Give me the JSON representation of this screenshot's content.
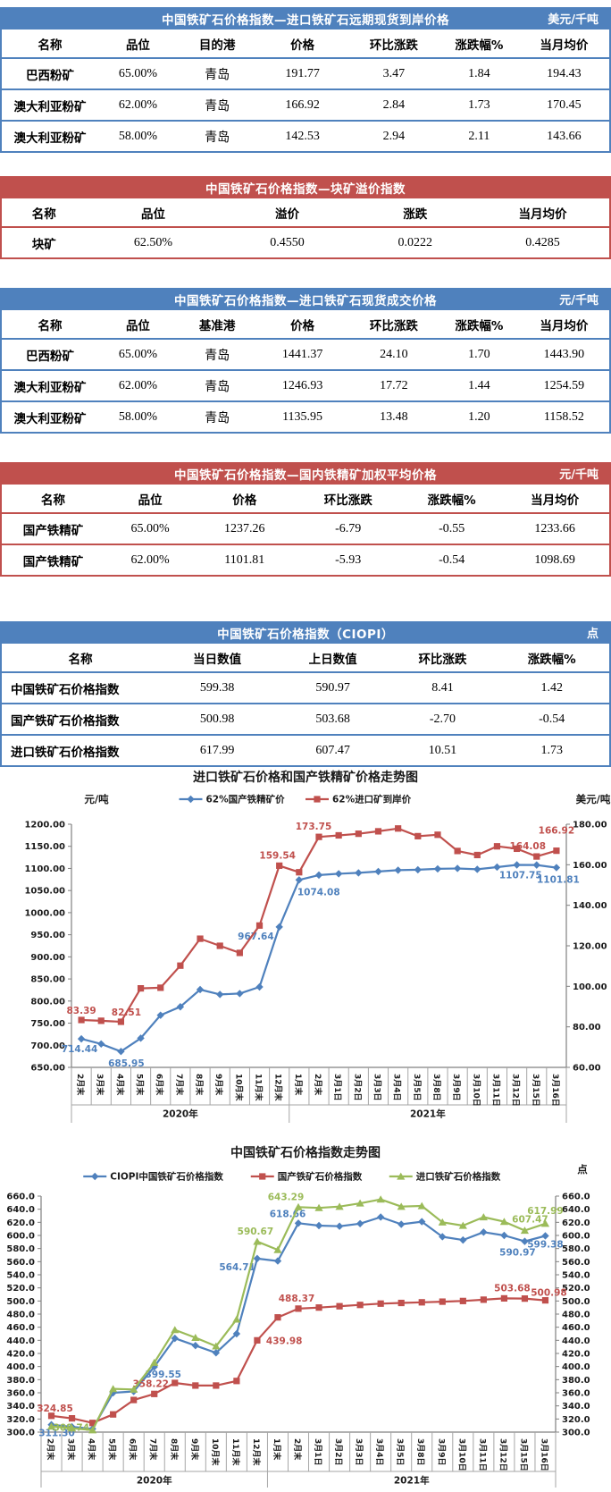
{
  "report": {
    "language": "zh-CN"
  },
  "tables": [
    {
      "title": "中国铁矿石价格指数—进口铁矿石远期现货到岸价格",
      "unit": "美元/千吨",
      "theme": "blue",
      "headers": [
        "名称",
        "品位",
        "目的港",
        "价格",
        "环比涨跌",
        "涨跌幅%",
        "当月均价"
      ],
      "rows": [
        [
          "巴西粉矿",
          "65.00%",
          "青岛",
          "191.77",
          "3.47",
          "1.84",
          "194.43"
        ],
        [
          "澳大利亚粉矿",
          "62.00%",
          "青岛",
          "166.92",
          "2.84",
          "1.73",
          "170.45"
        ],
        [
          "澳大利亚粉矿",
          "58.00%",
          "青岛",
          "142.53",
          "2.94",
          "2.11",
          "143.66"
        ]
      ]
    },
    {
      "title": "中国铁矿石价格指数—块矿溢价指数",
      "unit": "",
      "theme": "red",
      "headers": [
        "名称",
        "品位",
        "溢价",
        "涨跌",
        "当月均价"
      ],
      "rows": [
        [
          "块矿",
          "62.50%",
          "0.4550",
          "0.0222",
          "0.4285"
        ]
      ]
    },
    {
      "title": "中国铁矿石价格指数—进口铁矿石现货成交价格",
      "unit": "元/千吨",
      "theme": "blue",
      "headers": [
        "名称",
        "品位",
        "基准港",
        "价格",
        "环比涨跌",
        "涨跌幅%",
        "当月均价"
      ],
      "rows": [
        [
          "巴西粉矿",
          "65.00%",
          "青岛",
          "1441.37",
          "24.10",
          "1.70",
          "1443.90"
        ],
        [
          "澳大利亚粉矿",
          "62.00%",
          "青岛",
          "1246.93",
          "17.72",
          "1.44",
          "1254.59"
        ],
        [
          "澳大利亚粉矿",
          "58.00%",
          "青岛",
          "1135.95",
          "13.48",
          "1.20",
          "1158.52"
        ]
      ]
    },
    {
      "title": "中国铁矿石价格指数—国内铁精矿加权平均价格",
      "unit": "元/千吨",
      "theme": "red",
      "headers": [
        "名称",
        "品位",
        "价格",
        "环比涨跌",
        "涨跌幅%",
        "当月均价"
      ],
      "rows": [
        [
          "国产铁精矿",
          "65.00%",
          "1237.26",
          "-6.79",
          "-0.55",
          "1233.66"
        ],
        [
          "国产铁精矿",
          "62.00%",
          "1101.81",
          "-5.93",
          "-0.54",
          "1098.69"
        ]
      ]
    },
    {
      "title": "中国铁矿石价格指数（CIOPI）",
      "unit": "点",
      "theme": "blue",
      "headers": [
        "名称",
        "当日数值",
        "上日数值",
        "环比涨跌",
        "涨跌幅%"
      ],
      "rows": [
        [
          "中国铁矿石价格指数",
          "599.38",
          "590.97",
          "8.41",
          "1.42"
        ],
        [
          "国产铁矿石价格指数",
          "500.98",
          "503.68",
          "-2.70",
          "-0.54"
        ],
        [
          "进口铁矿石价格指数",
          "617.99",
          "607.47",
          "10.51",
          "1.73"
        ]
      ]
    }
  ],
  "chart_data": [
    {
      "type": "line",
      "name": "chart-import-vs-domestic-price-trend",
      "title": "进口铁矿石价格和国产铁精矿价格走势图",
      "left_axis": {
        "label": "元/吨",
        "min": 650,
        "max": 1200,
        "step": 50,
        "decimals": 2
      },
      "right_axis": {
        "label": "美元/吨",
        "min": 60,
        "max": 180,
        "step": 20,
        "decimals": 2
      },
      "grid": false,
      "legend_position": "top",
      "categories": [
        "2月末",
        "3月末",
        "4月末",
        "5月末",
        "6月末",
        "7月末",
        "8月末",
        "9月末",
        "10月末",
        "11月末",
        "12月末",
        "1月末",
        "2月末",
        "3月1日",
        "3月2日",
        "3月3日",
        "3月4日",
        "3月5日",
        "3月8日",
        "3月9日",
        "3月10日",
        "3月11日",
        "3月12日",
        "3月15日",
        "3月16日"
      ],
      "year_groups": [
        {
          "label": "2020年",
          "span": 11
        },
        {
          "label": "2021年",
          "span": 14
        }
      ],
      "series": [
        {
          "name": "62%国产铁精矿价",
          "color": "#4F81BD",
          "marker": "diamond",
          "axis": "left",
          "values": [
            714.44,
            703,
            685.95,
            716,
            768,
            787,
            826,
            815,
            817,
            832,
            967.64,
            1074.08,
            1085,
            1088,
            1090,
            1093,
            1096,
            1097,
            1099,
            1100,
            1098,
            1103,
            1108,
            1107.75,
            1101.81
          ],
          "labels": [
            {
              "i": 0,
              "t": "714.44",
              "dx": -2,
              "dy": 15,
              "a": "middle"
            },
            {
              "i": 2,
              "t": "685.95",
              "dx": 6,
              "dy": 17,
              "a": "middle"
            },
            {
              "i": 10,
              "t": "967.64",
              "dx": -6,
              "dy": 14,
              "a": "end"
            },
            {
              "i": 11,
              "t": "1074.08",
              "dx": -2,
              "dy": 17,
              "a": "start"
            },
            {
              "i": 23,
              "t": "1107.75",
              "dx": -18,
              "dy": 15,
              "a": "middle"
            },
            {
              "i": 24,
              "t": "1101.81",
              "dx": 2,
              "dy": 17,
              "a": "middle"
            }
          ]
        },
        {
          "name": "62%进口矿到岸价",
          "color": "#C0504D",
          "marker": "square",
          "axis": "right",
          "values": [
            83.39,
            83.0,
            82.51,
            99.0,
            99.3,
            110.2,
            123.5,
            120.0,
            116.5,
            130.0,
            159.54,
            156.3,
            173.75,
            174.5,
            175.3,
            176.5,
            177.9,
            174.1,
            174.8,
            166.8,
            164.8,
            169.1,
            167.9,
            164.08,
            166.92
          ],
          "labels": [
            {
              "i": 0,
              "t": "83.39",
              "dx": 0,
              "dy": -7,
              "a": "middle"
            },
            {
              "i": 2,
              "t": "82.51",
              "dx": 6,
              "dy": -7,
              "a": "middle"
            },
            {
              "i": 10,
              "t": "159.54",
              "dx": -2,
              "dy": -8,
              "a": "middle"
            },
            {
              "i": 12,
              "t": "173.75",
              "dx": -6,
              "dy": -8,
              "a": "middle"
            },
            {
              "i": 23,
              "t": "164.08",
              "dx": -10,
              "dy": -8,
              "a": "middle"
            },
            {
              "i": 24,
              "t": "166.92",
              "dx": 0,
              "dy": -19,
              "a": "middle"
            }
          ]
        }
      ]
    },
    {
      "type": "line",
      "name": "chart-ciopi-index-trend",
      "title": "中国铁矿石价格指数走势图",
      "left_axis": {
        "label": "",
        "min": 300,
        "max": 660,
        "step": 20,
        "decimals": 1
      },
      "right_axis": {
        "label": "点",
        "min": 300,
        "max": 660,
        "step": 20,
        "decimals": 1
      },
      "grid": false,
      "legend_position": "top",
      "categories": [
        "2月末",
        "3月末",
        "4月末",
        "5月末",
        "6月末",
        "7月末",
        "8月末",
        "9月末",
        "10月末",
        "11月末",
        "12月末",
        "1月末",
        "2月末",
        "3月1日",
        "3月2日",
        "3月3日",
        "3月4日",
        "3月5日",
        "3月8日",
        "3月9日",
        "3月10日",
        "3月11日",
        "3月12日",
        "3月15日",
        "3月16日"
      ],
      "year_groups": [
        {
          "label": "2020年",
          "span": 11
        },
        {
          "label": "2021年",
          "span": 14
        }
      ],
      "series": [
        {
          "name": "CIOPI中国铁矿石价格指数",
          "color": "#4F81BD",
          "marker": "diamond",
          "axis": "left",
          "values": [
            311.3,
            308,
            305,
            360,
            362,
            399.55,
            443,
            432,
            421,
            450,
            564.71,
            561,
            618.66,
            615,
            614,
            618,
            628,
            617,
            621,
            598,
            593,
            605,
            600,
            590.97,
            599.38
          ],
          "labels": [
            {
              "i": 0,
              "t": "311.30",
              "dx": 6,
              "dy": 13,
              "a": "middle"
            },
            {
              "i": 5,
              "t": "399.55",
              "dx": 10,
              "dy": 12,
              "a": "middle"
            },
            {
              "i": 10,
              "t": "564.71",
              "dx": -2,
              "dy": 13,
              "a": "end"
            },
            {
              "i": 12,
              "t": "618.66",
              "dx": -12,
              "dy": -7,
              "a": "middle"
            },
            {
              "i": 23,
              "t": "590.97",
              "dx": -8,
              "dy": 16,
              "a": "middle"
            },
            {
              "i": 24,
              "t": "599.38",
              "dx": 0,
              "dy": 13,
              "a": "middle"
            }
          ]
        },
        {
          "name": "国产铁矿石价格指数",
          "color": "#C0504D",
          "marker": "square",
          "axis": "left",
          "values": [
            324.85,
            321,
            314,
            327,
            349,
            358.22,
            375,
            371,
            371,
            378,
            439.98,
            475,
            488.37,
            490,
            492,
            494,
            496,
            497,
            498,
            499,
            500,
            502,
            504,
            503.68,
            500.98
          ],
          "labels": [
            {
              "i": 0,
              "t": "324.85",
              "dx": 4,
              "dy": -5,
              "a": "middle"
            },
            {
              "i": 5,
              "t": "358.22",
              "dx": -4,
              "dy": -8,
              "a": "middle"
            },
            {
              "i": 10,
              "t": "439.98",
              "dx": 10,
              "dy": 4,
              "a": "start"
            },
            {
              "i": 12,
              "t": "488.37",
              "dx": -2,
              "dy": -8,
              "a": "middle"
            },
            {
              "i": 23,
              "t": "503.68",
              "dx": -14,
              "dy": -8,
              "a": "middle"
            },
            {
              "i": 24,
              "t": "500.98",
              "dx": 4,
              "dy": -5,
              "a": "middle"
            }
          ]
        },
        {
          "name": "进口铁矿石价格指数",
          "color": "#9BBB59",
          "marker": "triangle",
          "axis": "left",
          "values": [
            308.74,
            306,
            303,
            366,
            365,
            406,
            456,
            444,
            431,
            472,
            590.67,
            578,
            643.29,
            642,
            644,
            649,
            655,
            644,
            645,
            620,
            615,
            628,
            621,
            607.47,
            617.99
          ],
          "labels": [
            {
              "i": 0,
              "t": "308.74",
              "dx": 2,
              "dy": 5,
              "a": "start"
            },
            {
              "i": 10,
              "t": "590.67",
              "dx": -2,
              "dy": -8,
              "a": "middle"
            },
            {
              "i": 12,
              "t": "643.29",
              "dx": -14,
              "dy": -8,
              "a": "middle"
            },
            {
              "i": 23,
              "t": "607.47",
              "dx": 6,
              "dy": -9,
              "a": "middle"
            },
            {
              "i": 24,
              "t": "617.99",
              "dx": 0,
              "dy": -11,
              "a": "middle"
            }
          ]
        }
      ]
    }
  ]
}
